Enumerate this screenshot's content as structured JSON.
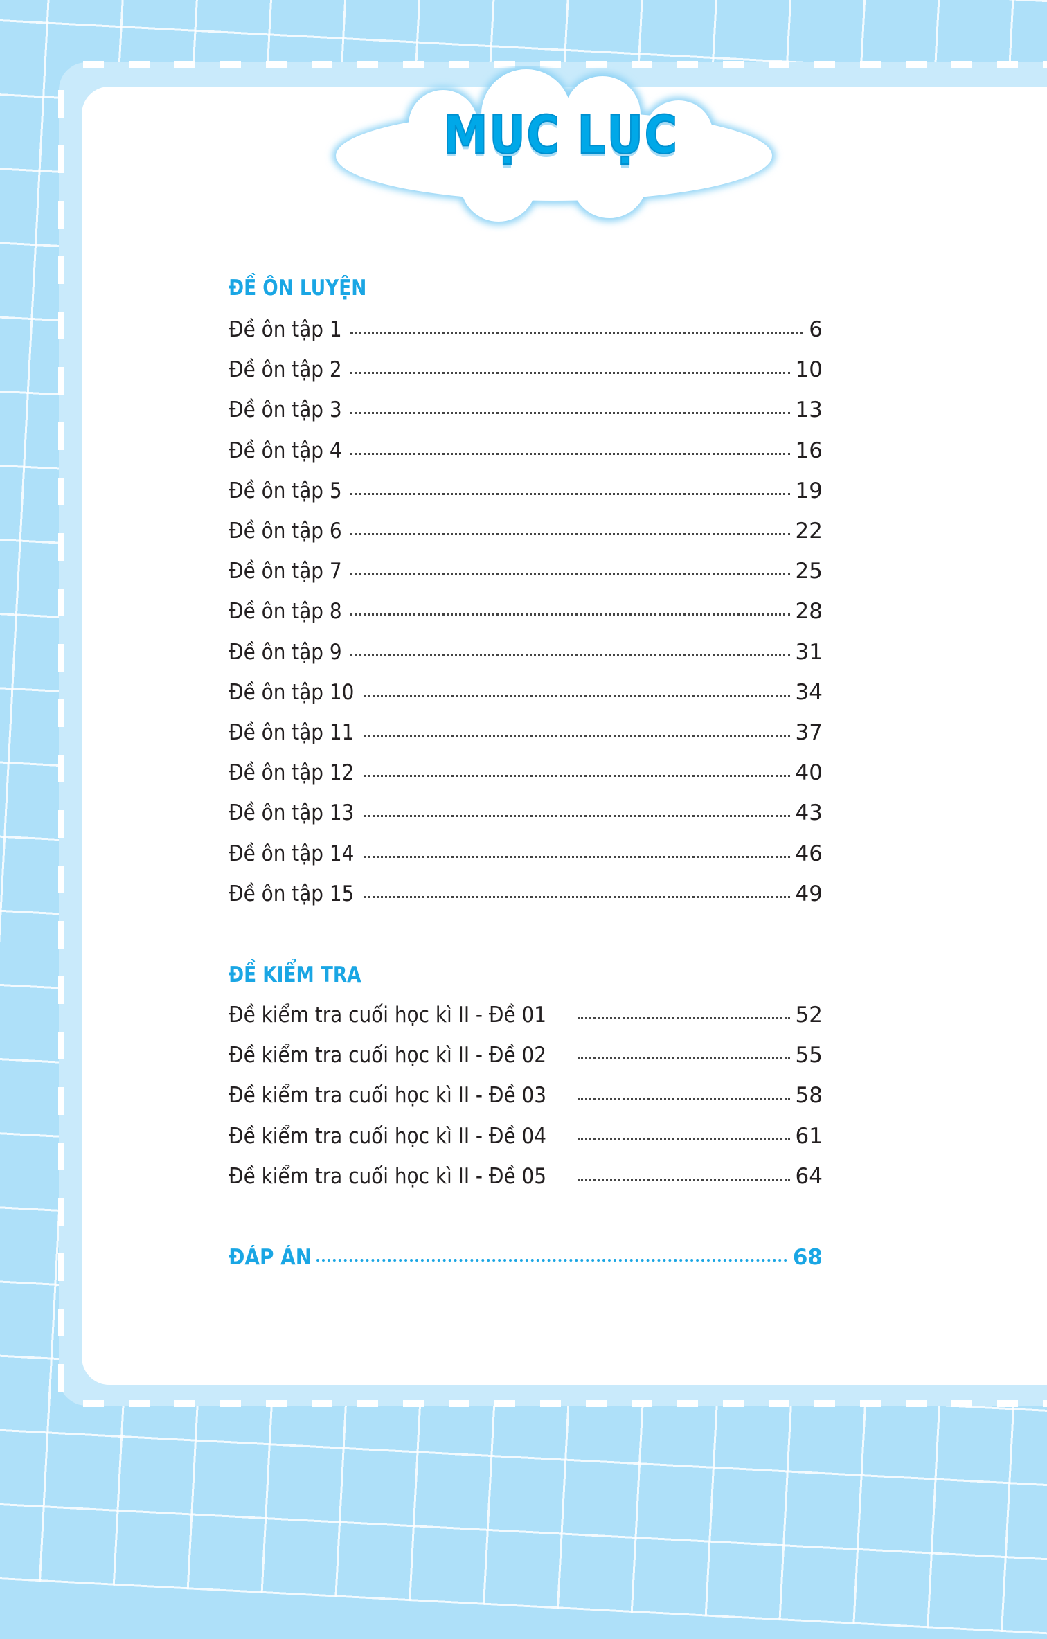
{
  "title": "MỤC LỤC",
  "sections": [
    {
      "heading": "ĐỀ ÔN LUYỆN",
      "entries": [
        {
          "label": "Đề ôn tập 1",
          "page": "6"
        },
        {
          "label": "Đề ôn tập 2",
          "page": "10"
        },
        {
          "label": "Đề ôn tập 3",
          "page": "13"
        },
        {
          "label": "Đề ôn tập 4",
          "page": "16"
        },
        {
          "label": "Đề ôn tập 5",
          "page": "19"
        },
        {
          "label": "Đề ôn tập 6",
          "page": "22"
        },
        {
          "label": "Đề ôn tập 7",
          "page": "25"
        },
        {
          "label": "Đề ôn tập 8",
          "page": "28"
        },
        {
          "label": "Đề ôn tập 9",
          "page": "31"
        },
        {
          "label": "Đề ôn tập 10",
          "page": "34"
        },
        {
          "label": "Đề ôn tập 11",
          "page": "37"
        },
        {
          "label": "Đề ôn tập 12",
          "page": "40"
        },
        {
          "label": "Đề ôn tập 13",
          "page": "43"
        },
        {
          "label": "Đề ôn tập 14",
          "page": "46"
        },
        {
          "label": "Đề ôn tập 15",
          "page": "49"
        }
      ]
    },
    {
      "heading": "ĐỀ KIỂM TRA",
      "entries": [
        {
          "label": "Đề kiểm tra cuối học kì II - Đề 01",
          "page": "52"
        },
        {
          "label": "Đề kiểm tra cuối học kì II - Đề 02",
          "page": "55"
        },
        {
          "label": "Đề kiểm tra cuối học kì II - Đề 03",
          "page": "58"
        },
        {
          "label": "Đề kiểm tra cuối học kì II - Đề 04",
          "page": "61"
        },
        {
          "label": "Đề kiểm tra cuối học kì II - Đề 05",
          "page": "64"
        }
      ]
    }
  ],
  "answers": {
    "label": "ĐÁP ÁN",
    "page": "68"
  },
  "colors": {
    "accent": "#1aa6e4",
    "background": "#aee0f9",
    "frame": "#c9eafb"
  }
}
